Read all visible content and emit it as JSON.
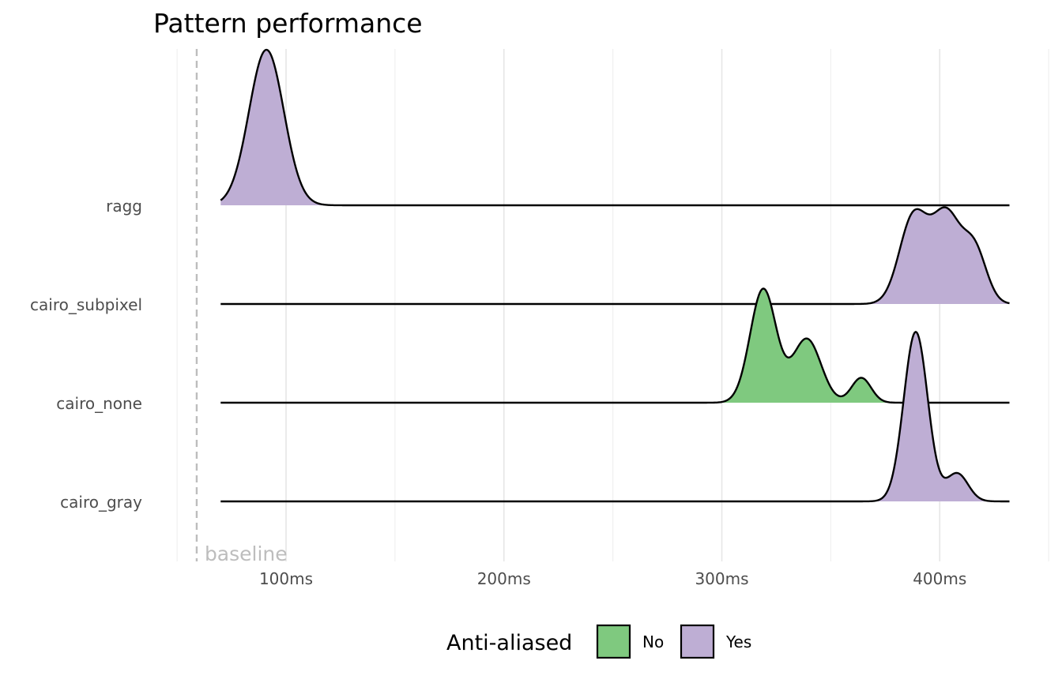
{
  "chart_data": {
    "type": "ridgeline",
    "title": "Pattern performance",
    "xlabel": "",
    "ylabel": "",
    "x_unit": "ms",
    "xlim": [
      40,
      440
    ],
    "x_ticks": [
      100,
      200,
      300,
      400
    ],
    "x_tick_labels": [
      "100ms",
      "200ms",
      "300ms",
      "400ms"
    ],
    "grid": true,
    "baseline": {
      "x": 59,
      "label": "baseline"
    },
    "categories": [
      "ragg",
      "cairo_subpixel",
      "cairo_none",
      "cairo_gray"
    ],
    "series": [
      {
        "name": "ragg",
        "anti_aliased": "Yes",
        "line_start": 70,
        "line_end": 432,
        "density_peaks": [
          {
            "center": 91,
            "height": 1.0,
            "sd": 8
          }
        ]
      },
      {
        "name": "cairo_subpixel",
        "anti_aliased": "Yes",
        "line_start": 70,
        "line_end": 432,
        "density_peaks": [
          {
            "center": 388,
            "height": 0.56,
            "sd": 6.5
          },
          {
            "center": 403,
            "height": 0.56,
            "sd": 6.5
          },
          {
            "center": 416,
            "height": 0.34,
            "sd": 5.5
          }
        ]
      },
      {
        "name": "cairo_none",
        "anti_aliased": "No",
        "line_start": 70,
        "line_end": 432,
        "density_peaks": [
          {
            "center": 319,
            "height": 0.73,
            "sd": 6
          },
          {
            "center": 339,
            "height": 0.41,
            "sd": 6.5
          },
          {
            "center": 364,
            "height": 0.16,
            "sd": 4.5
          }
        ]
      },
      {
        "name": "cairo_gray",
        "anti_aliased": "Yes",
        "line_start": 70,
        "line_end": 432,
        "density_peaks": [
          {
            "center": 389,
            "height": 1.09,
            "sd": 5.5
          },
          {
            "center": 408,
            "height": 0.18,
            "sd": 5
          }
        ]
      }
    ],
    "legend": {
      "title": "Anti-aliased",
      "position": "bottom",
      "items": [
        {
          "label": "No",
          "color": "#7fc97f"
        },
        {
          "label": "Yes",
          "color": "#beaed4"
        }
      ]
    },
    "colors": {
      "No": "#7fc97f",
      "Yes": "#beaed4"
    }
  }
}
